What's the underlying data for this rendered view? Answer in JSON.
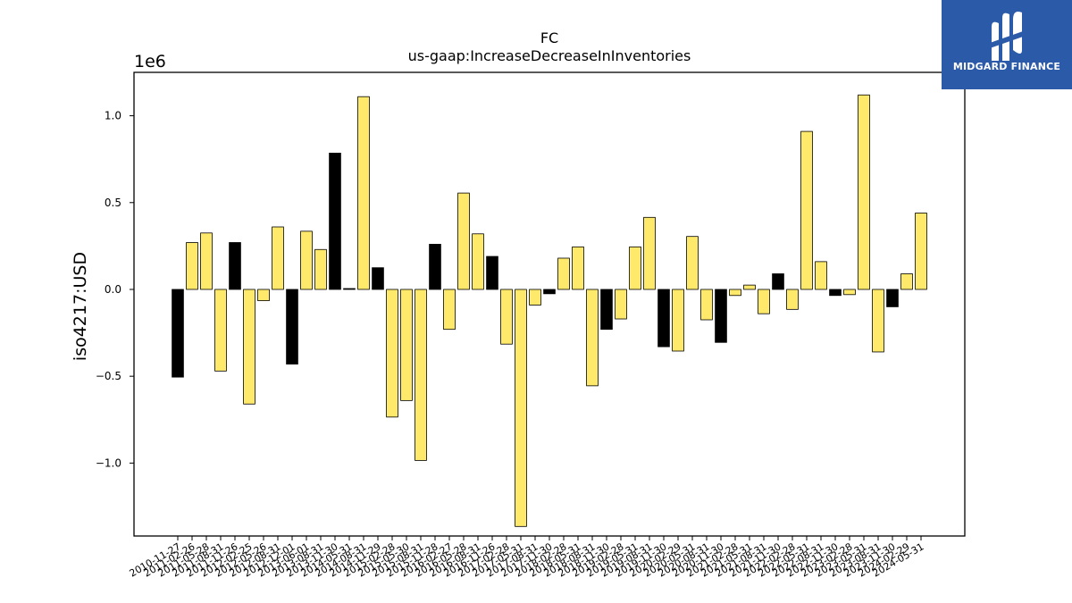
{
  "chart_data": {
    "type": "bar",
    "title": "FC",
    "subtitle": "us-gaap:IncreaseDecreaseInInventories",
    "ylabel": "iso4217:USD",
    "xlabel": "",
    "y_scale_label": "1e6",
    "ylim": [
      -1.42,
      1.25
    ],
    "yticks": [
      -1.0,
      -0.5,
      0.0,
      0.5,
      1.0
    ],
    "ytick_labels": [
      "−1.0",
      "−0.5",
      "0.0",
      "0.5",
      "1.0"
    ],
    "grid": false,
    "colors": {
      "positive_series": "#ffe96b",
      "negative_series": "#000000",
      "edge": "#000000"
    },
    "categories": [
      "2010-11-27",
      "2011-02-26",
      "2011-05-28",
      "2011-08-31",
      "2011-11-26",
      "2012-02-25",
      "2012-05-26",
      "2012-08-31",
      "2012-12-01",
      "2013-06-01",
      "2013-08-31",
      "2013-11-30",
      "2014-05-31",
      "2014-08-31",
      "2014-11-29",
      "2015-02-28",
      "2015-05-30",
      "2015-08-31",
      "2015-11-28",
      "2016-02-27",
      "2016-05-28",
      "2016-08-31",
      "2016-11-26",
      "2017-02-28",
      "2017-05-31",
      "2017-08-31",
      "2017-11-30",
      "2018-02-28",
      "2018-05-31",
      "2018-08-31",
      "2018-11-30",
      "2019-02-28",
      "2019-05-31",
      "2019-08-31",
      "2019-11-30",
      "2020-02-29",
      "2020-05-31",
      "2020-08-31",
      "2020-11-30",
      "2021-02-28",
      "2021-05-31",
      "2021-08-31",
      "2021-11-30",
      "2022-02-28",
      "2022-05-31",
      "2022-08-31",
      "2022-11-30",
      "2023-02-28",
      "2023-05-31",
      "2023-08-31",
      "2023-11-30",
      "2024-02-29",
      "2024-05-31"
    ],
    "values": [
      -0.505,
      0.27,
      0.325,
      -0.47,
      0.27,
      -0.66,
      -0.065,
      0.36,
      -0.43,
      0.335,
      0.23,
      0.785,
      0.005,
      1.11,
      0.125,
      -0.735,
      -0.64,
      -0.985,
      0.26,
      -0.23,
      0.555,
      0.32,
      0.19,
      -0.315,
      -1.365,
      -0.09,
      -0.025,
      0.18,
      0.245,
      -0.555,
      -0.23,
      -0.17,
      0.245,
      0.415,
      -0.33,
      -0.355,
      0.305,
      -0.175,
      -0.305,
      -0.035,
      0.025,
      -0.14,
      0.09,
      -0.115,
      0.91,
      0.16,
      -0.035,
      -0.03,
      1.12,
      -0.36,
      -0.1,
      0.09,
      0.44
    ],
    "bar_colors": [
      "#000000",
      "#ffe96b",
      "#ffe96b",
      "#ffe96b",
      "#000000",
      "#ffe96b",
      "#ffe96b",
      "#ffe96b",
      "#000000",
      "#ffe96b",
      "#ffe96b",
      "#000000",
      "#000000",
      "#ffe96b",
      "#000000",
      "#ffe96b",
      "#ffe96b",
      "#ffe96b",
      "#000000",
      "#ffe96b",
      "#ffe96b",
      "#ffe96b",
      "#000000",
      "#ffe96b",
      "#ffe96b",
      "#ffe96b",
      "#000000",
      "#ffe96b",
      "#ffe96b",
      "#ffe96b",
      "#000000",
      "#ffe96b",
      "#ffe96b",
      "#ffe96b",
      "#000000",
      "#ffe96b",
      "#ffe96b",
      "#ffe96b",
      "#000000",
      "#ffe96b",
      "#ffe96b",
      "#ffe96b",
      "#000000",
      "#ffe96b",
      "#ffe96b",
      "#ffe96b",
      "#000000",
      "#ffe96b",
      "#ffe96b",
      "#ffe96b",
      "#000000",
      "#ffe96b",
      "#ffe96b"
    ]
  },
  "logo": {
    "text": "MIDGARD FINANCE",
    "icon": "midgard-logo-icon"
  }
}
